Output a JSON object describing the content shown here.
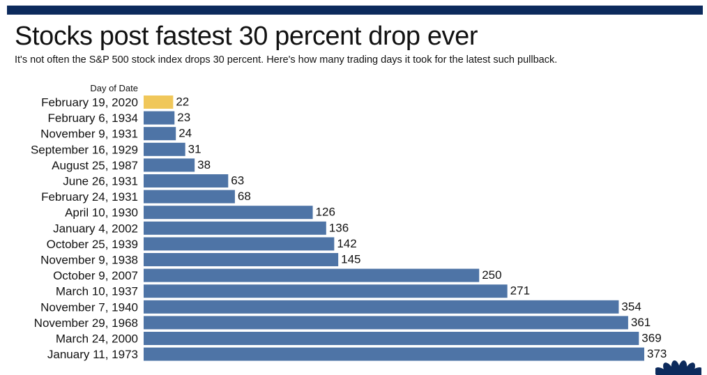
{
  "header": {
    "title": "Stocks post fastest 30 percent drop ever",
    "subtitle": "It's not often the S&P 500 stock index drops 30 percent. Here's how many trading days it took for the latest such pullback."
  },
  "colors": {
    "top_bar": "#0c2a5c",
    "bar": "#4e74a6",
    "highlight": "#f0c75a",
    "text": "#111111"
  },
  "chart_data": {
    "type": "bar",
    "orientation": "horizontal",
    "title": "Stocks post fastest 30 percent drop ever",
    "subtitle": "It's not often the S&P 500 stock index drops 30 percent. Here's how many trading days it took for the latest such pullback.",
    "category_header": "Day of Date",
    "categories": [
      "February 19, 2020",
      "February 6, 1934",
      "November 9, 1931",
      "September 16, 1929",
      "August 25, 1987",
      "June 26, 1931",
      "February 24, 1931",
      "April 10, 1930",
      "January 4, 2002",
      "October 25, 1939",
      "November 9, 1938",
      "October 9, 2007",
      "March 10, 1937",
      "November 7, 1940",
      "November 29, 1968",
      "March 24, 2000",
      "January 11, 1973"
    ],
    "values": [
      22,
      23,
      24,
      31,
      38,
      63,
      68,
      126,
      136,
      142,
      145,
      250,
      271,
      354,
      361,
      369,
      373
    ],
    "highlight_index": 0,
    "xlim": [
      0,
      373
    ],
    "grid": false,
    "legend": "none",
    "data_labels": true
  },
  "logo": {
    "icon": "peacock-logo-icon"
  }
}
